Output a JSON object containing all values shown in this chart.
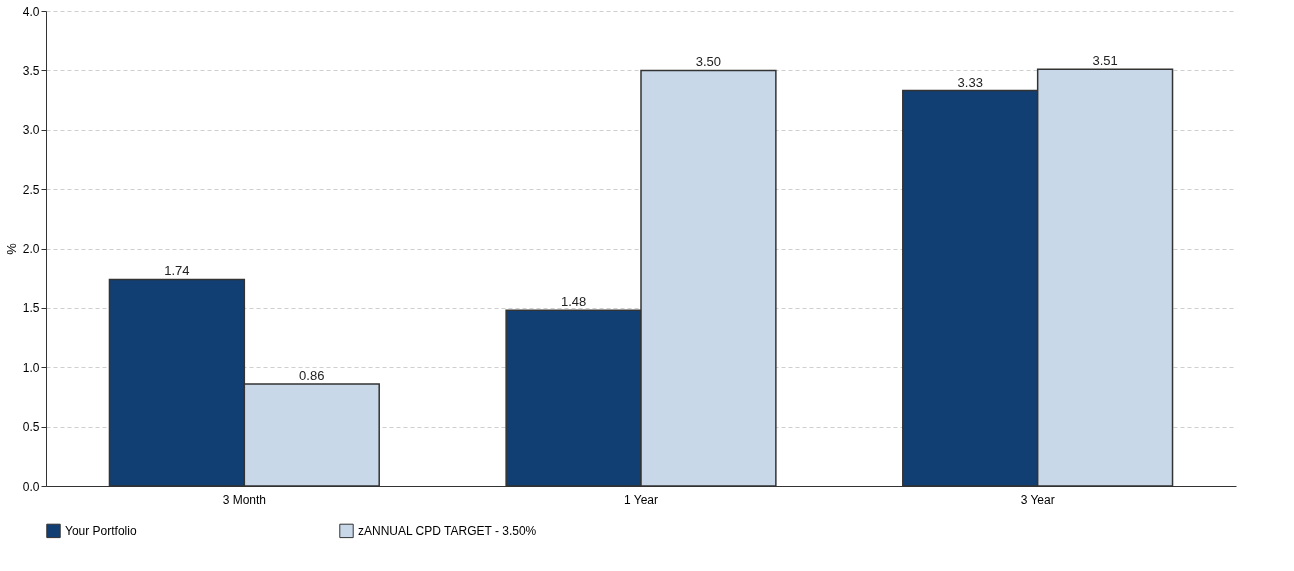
{
  "chart_data": {
    "type": "bar",
    "ylabel": "%",
    "categories": [
      "3 Month",
      "1 Year",
      "3 Year"
    ],
    "series": [
      {
        "name": "Your Portfolio",
        "color": "#123f73",
        "values": [
          1.74,
          1.48,
          3.33
        ],
        "value_labels": [
          "1.74",
          "1.48",
          "3.33"
        ]
      },
      {
        "name": "zANNUAL CPD TARGET - 3.50%",
        "color": "#c8d8e8",
        "values": [
          0.86,
          3.5,
          3.51
        ],
        "value_labels": [
          "0.86",
          "3.50",
          "3.51"
        ]
      }
    ],
    "ylim": [
      0,
      4
    ],
    "yticks": [
      {
        "value": 0,
        "label": "0.0"
      },
      {
        "value": 0.5,
        "label": "0.5"
      },
      {
        "value": 1,
        "label": "1.0"
      },
      {
        "value": 1.5,
        "label": "1.5"
      },
      {
        "value": 2,
        "label": "2.0"
      },
      {
        "value": 2.5,
        "label": "2.5"
      },
      {
        "value": 3,
        "label": "3.0"
      },
      {
        "value": 3.5,
        "label": "3.5"
      },
      {
        "value": 4,
        "label": "4.0"
      }
    ],
    "grid": "y",
    "legend": "bottom"
  }
}
